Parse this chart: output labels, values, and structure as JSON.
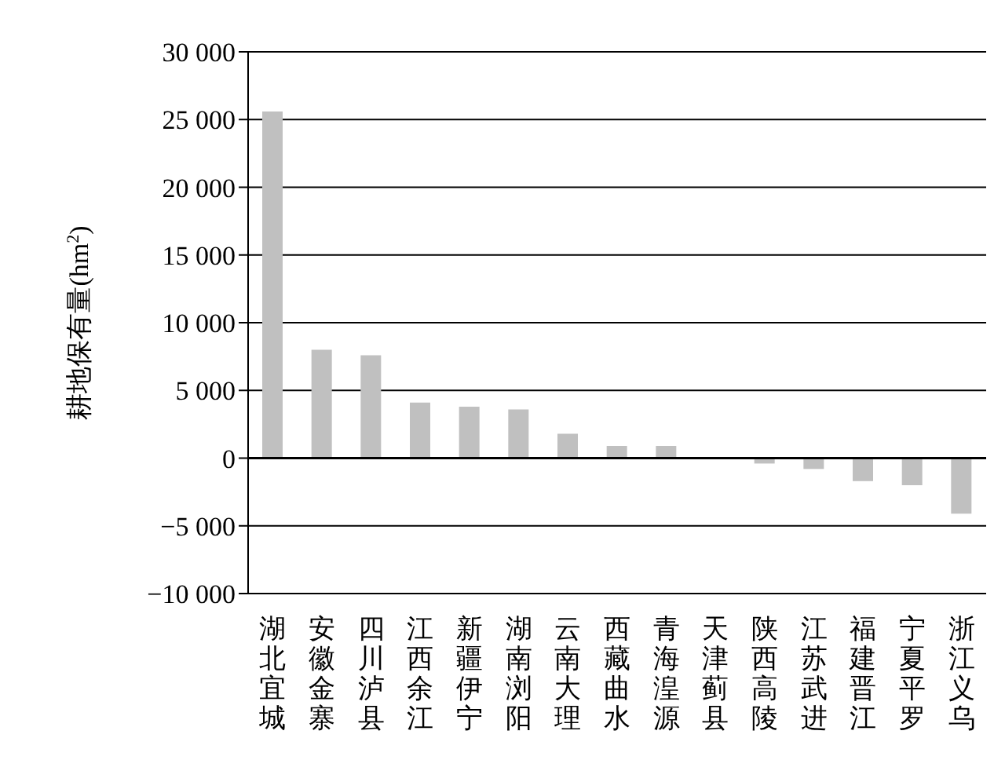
{
  "chart_data": {
    "type": "bar",
    "ylabel": "耕地保有量(hm$^{2}$)",
    "categories": [
      "湖北宜城",
      "安徽金寨",
      "四川泸县",
      "江西余江",
      "新疆伊宁",
      "湖南浏阳",
      "云南大理",
      "西藏曲水",
      "青海湟源",
      "天津蓟县",
      "陕西高陵",
      "江苏武进",
      "福建晋江",
      "宁夏平罗",
      "浙江义乌"
    ],
    "values": [
      25600,
      8000,
      7600,
      4100,
      3800,
      3600,
      1800,
      900,
      900,
      0,
      -400,
      -800,
      -1700,
      -2000,
      -4100
    ],
    "color": "#c0c0c0",
    "ylim": [
      -10000,
      30000
    ],
    "yticks": [
      {
        "value": -10000,
        "label": "−10 000"
      },
      {
        "value": -5000,
        "label": "−5 000"
      },
      0,
      {
        "value": 5000,
        "label": "5 000"
      },
      {
        "value": 10000,
        "label": "10 000"
      },
      {
        "value": 15000,
        "label": "15 000"
      },
      {
        "value": 20000,
        "label": "20 000"
      },
      {
        "value": 25000,
        "label": "25 000"
      },
      {
        "value": 30000,
        "label": "30 000"
      }
    ],
    "grid": "y"
  }
}
